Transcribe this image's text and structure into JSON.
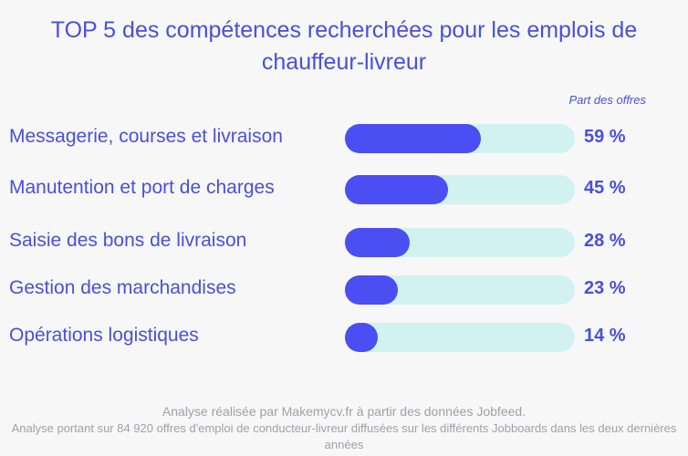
{
  "chart_data": {
    "type": "bar",
    "orientation": "horizontal",
    "title": "TOP 5 des compétences recherchées pour les emplois  de chauffeur-livreur",
    "column_header": "Part des offres",
    "unit": "%",
    "xlim": [
      0,
      100
    ],
    "categories": [
      "Messagerie, courses et livraison",
      "Manutention et port de charges",
      "Saisie des bons de livraison",
      "Gestion des marchandises",
      "Opérations logistiques"
    ],
    "values": [
      59,
      45,
      28,
      23,
      14
    ],
    "value_labels": [
      "59 %",
      "45 %",
      "28 %",
      "23 %",
      "14 %"
    ],
    "colors": {
      "fill": "#4b4ef2",
      "track": "#d2f2f2",
      "text": "#4a4fdc"
    }
  },
  "footer": {
    "source": "Analyse réalisée par Makemycv.fr à partir des données Jobfeed.",
    "scope": "Analyse portant sur 84 920 offres d'emploi de conducteur-livreur diffusées sur les différents Jobboards dans les deux dernières années"
  }
}
